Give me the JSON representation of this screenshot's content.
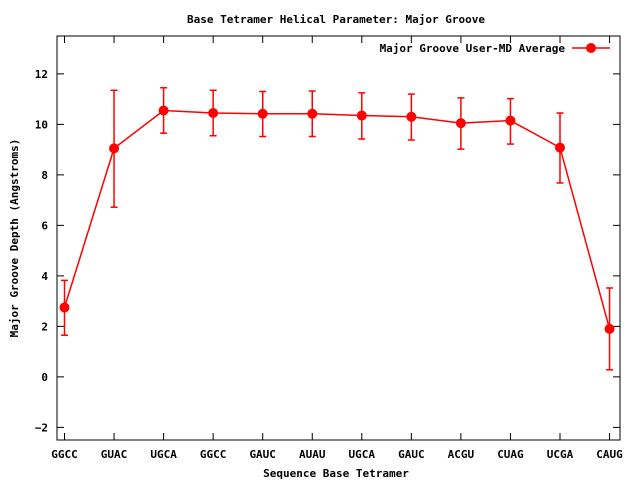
{
  "chart_data": {
    "type": "line",
    "title": "Base Tetramer Helical Parameter: Major Groove",
    "xlabel": "Sequence Base Tetramer",
    "ylabel": "Major Groove Depth (Angstroms)",
    "categories": [
      "GGCC",
      "GUAC",
      "UGCA",
      "GGCC",
      "GAUC",
      "AUAU",
      "UGCA",
      "GAUC",
      "ACGU",
      "CUAG",
      "UCGA",
      "CAUG"
    ],
    "ylim": [
      -2.5,
      13.5
    ],
    "yticks": [
      -2,
      0,
      2,
      4,
      6,
      8,
      10,
      12
    ],
    "grid": false,
    "legend_position": "top-right",
    "series": [
      {
        "name": "Major Groove User-MD Average",
        "color": "#ff0000",
        "values": [
          2.75,
          9.05,
          10.55,
          10.45,
          10.42,
          10.42,
          10.35,
          10.3,
          10.05,
          10.15,
          9.08,
          1.9
        ],
        "error_low": [
          1.65,
          6.72,
          9.65,
          9.55,
          9.52,
          9.52,
          9.42,
          9.38,
          9.02,
          9.22,
          7.68,
          0.28
        ],
        "error_high": [
          3.82,
          11.35,
          11.45,
          11.35,
          11.3,
          11.32,
          11.25,
          11.2,
          11.05,
          11.02,
          10.45,
          3.52
        ]
      }
    ]
  }
}
